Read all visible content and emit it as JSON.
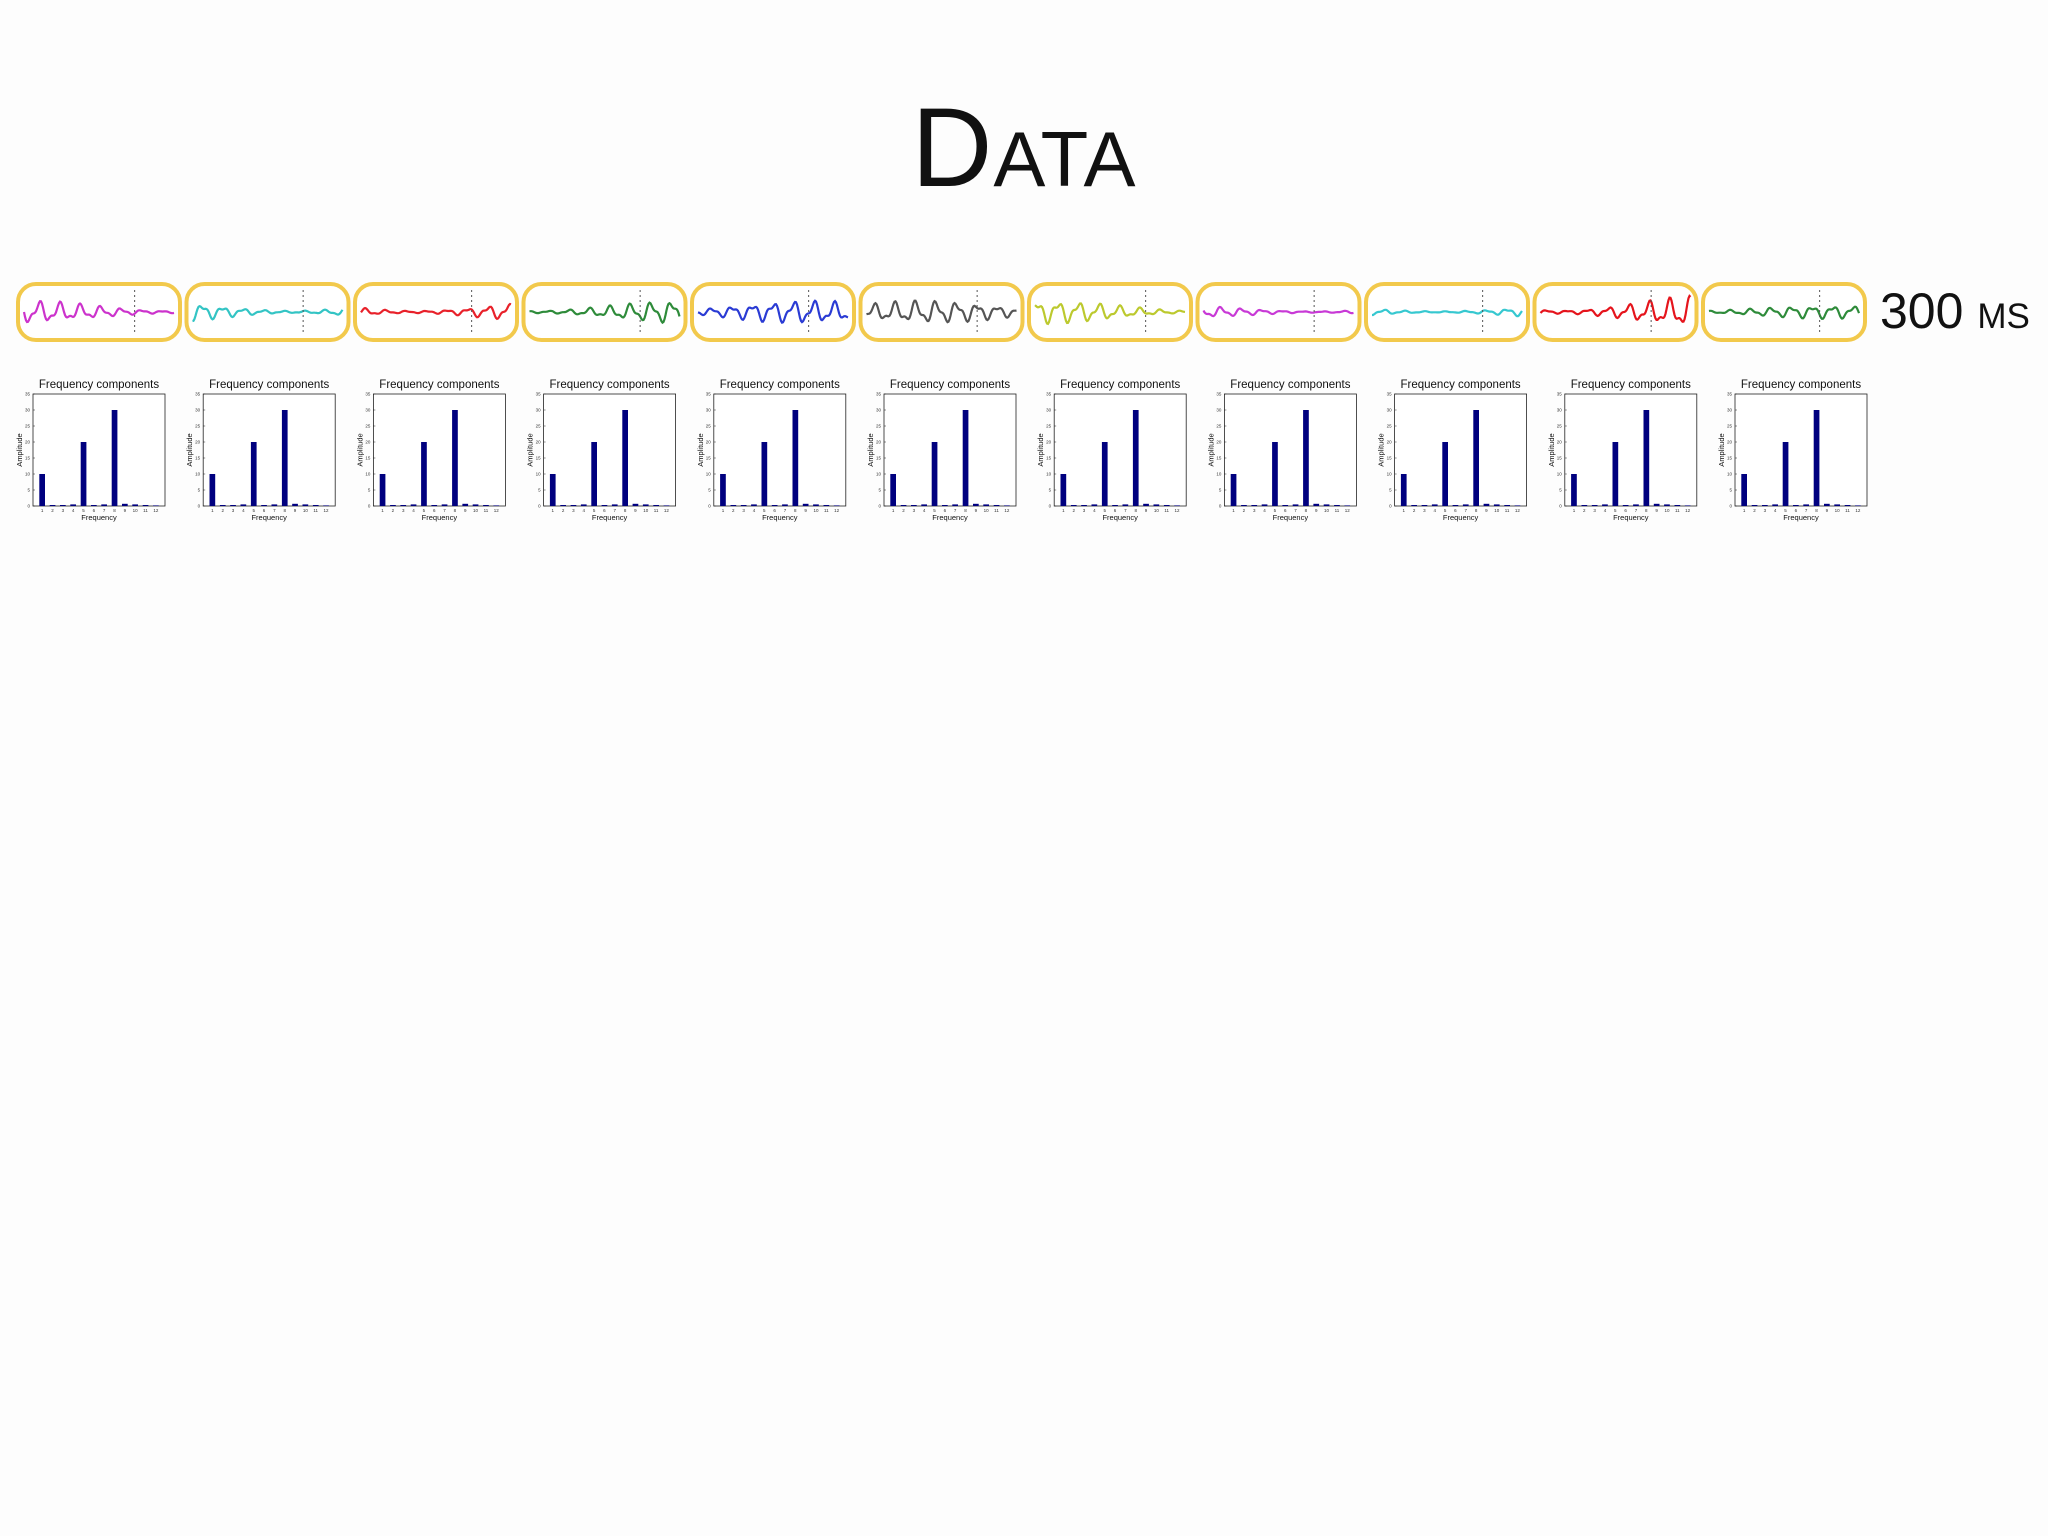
{
  "slide": {
    "title": "Data",
    "duration_label": "300 ms"
  },
  "colors": {
    "segment_border": "#f2c94c",
    "bar_fill": "#00007f",
    "waveforms": [
      "#cc33cc",
      "#33c4c4",
      "#e8212a",
      "#2e8b3a",
      "#2a3bd4",
      "#555555",
      "#bcc92e",
      "#c83ad6",
      "#36c8d0",
      "#e5141c",
      "#2e8b3a"
    ]
  },
  "signal_segments": [
    {
      "color": "#cc33cc"
    },
    {
      "color": "#33c4c4"
    },
    {
      "color": "#e8212a"
    },
    {
      "color": "#2e8b3a"
    },
    {
      "color": "#2a3bd4"
    },
    {
      "color": "#555555"
    },
    {
      "color": "#bcc92e"
    },
    {
      "color": "#c83ad6"
    },
    {
      "color": "#36c8d0"
    },
    {
      "color": "#e5141c"
    },
    {
      "color": "#2e8b3a"
    }
  ],
  "chart_data": [
    {
      "type": "bar",
      "title": "Frequency components",
      "xlabel": "Frequency",
      "ylabel": "Amplitude",
      "categories": [
        "1",
        "2",
        "3",
        "4",
        "5",
        "6",
        "7",
        "8",
        "9",
        "10",
        "11",
        "12"
      ],
      "values": [
        10,
        0.3,
        0.3,
        0.5,
        20,
        0.3,
        0.5,
        30,
        0.7,
        0.5,
        0.3,
        0.2
      ],
      "ylim": [
        0,
        35
      ],
      "yticks": [
        "0",
        "5",
        "10",
        "15",
        "20",
        "25",
        "30",
        "35"
      ]
    },
    {
      "type": "bar",
      "title": "Frequency components",
      "xlabel": "Frequency",
      "ylabel": "Amplitude",
      "categories": [
        "1",
        "2",
        "3",
        "4",
        "5",
        "6",
        "7",
        "8",
        "9",
        "10",
        "11",
        "12"
      ],
      "values": [
        10,
        0.3,
        0.3,
        0.5,
        20,
        0.3,
        0.5,
        30,
        0.7,
        0.5,
        0.3,
        0.2
      ],
      "ylim": [
        0,
        35
      ],
      "yticks": [
        "0",
        "5",
        "10",
        "15",
        "20",
        "25",
        "30",
        "35"
      ]
    },
    {
      "type": "bar",
      "title": "Frequency components",
      "xlabel": "Frequency",
      "ylabel": "Amplitude",
      "categories": [
        "1",
        "2",
        "3",
        "4",
        "5",
        "6",
        "7",
        "8",
        "9",
        "10",
        "11",
        "12"
      ],
      "values": [
        10,
        0.3,
        0.3,
        0.5,
        20,
        0.3,
        0.5,
        30,
        0.7,
        0.5,
        0.3,
        0.2
      ],
      "ylim": [
        0,
        35
      ],
      "yticks": [
        "0",
        "5",
        "10",
        "15",
        "20",
        "25",
        "30",
        "35"
      ]
    },
    {
      "type": "bar",
      "title": "Frequency components",
      "xlabel": "Frequency",
      "ylabel": "Amplitude",
      "categories": [
        "1",
        "2",
        "3",
        "4",
        "5",
        "6",
        "7",
        "8",
        "9",
        "10",
        "11",
        "12"
      ],
      "values": [
        10,
        0.3,
        0.3,
        0.5,
        20,
        0.3,
        0.5,
        30,
        0.7,
        0.5,
        0.3,
        0.2
      ],
      "ylim": [
        0,
        35
      ],
      "yticks": [
        "0",
        "5",
        "10",
        "15",
        "20",
        "25",
        "30",
        "35"
      ]
    },
    {
      "type": "bar",
      "title": "Frequency components",
      "xlabel": "Frequency",
      "ylabel": "Amplitude",
      "categories": [
        "1",
        "2",
        "3",
        "4",
        "5",
        "6",
        "7",
        "8",
        "9",
        "10",
        "11",
        "12"
      ],
      "values": [
        10,
        0.3,
        0.3,
        0.5,
        20,
        0.3,
        0.5,
        30,
        0.7,
        0.5,
        0.3,
        0.2
      ],
      "ylim": [
        0,
        35
      ],
      "yticks": [
        "0",
        "5",
        "10",
        "15",
        "20",
        "25",
        "30",
        "35"
      ]
    },
    {
      "type": "bar",
      "title": "Frequency components",
      "xlabel": "Frequency",
      "ylabel": "Amplitude",
      "categories": [
        "1",
        "2",
        "3",
        "4",
        "5",
        "6",
        "7",
        "8",
        "9",
        "10",
        "11",
        "12"
      ],
      "values": [
        10,
        0.3,
        0.3,
        0.5,
        20,
        0.3,
        0.5,
        30,
        0.7,
        0.5,
        0.3,
        0.2
      ],
      "ylim": [
        0,
        35
      ],
      "yticks": [
        "0",
        "5",
        "10",
        "15",
        "20",
        "25",
        "30",
        "35"
      ]
    },
    {
      "type": "bar",
      "title": "Frequency components",
      "xlabel": "Frequency",
      "ylabel": "Amplitude",
      "categories": [
        "1",
        "2",
        "3",
        "4",
        "5",
        "6",
        "7",
        "8",
        "9",
        "10",
        "11",
        "12"
      ],
      "values": [
        10,
        0.3,
        0.3,
        0.5,
        20,
        0.3,
        0.5,
        30,
        0.7,
        0.5,
        0.3,
        0.2
      ],
      "ylim": [
        0,
        35
      ],
      "yticks": [
        "0",
        "5",
        "10",
        "15",
        "20",
        "25",
        "30",
        "35"
      ]
    },
    {
      "type": "bar",
      "title": "Frequency components",
      "xlabel": "Frequency",
      "ylabel": "Amplitude",
      "categories": [
        "1",
        "2",
        "3",
        "4",
        "5",
        "6",
        "7",
        "8",
        "9",
        "10",
        "11",
        "12"
      ],
      "values": [
        10,
        0.3,
        0.3,
        0.5,
        20,
        0.3,
        0.5,
        30,
        0.7,
        0.5,
        0.3,
        0.2
      ],
      "ylim": [
        0,
        35
      ],
      "yticks": [
        "0",
        "5",
        "10",
        "15",
        "20",
        "25",
        "30",
        "35"
      ]
    },
    {
      "type": "bar",
      "title": "Frequency components",
      "xlabel": "Frequency",
      "ylabel": "Amplitude",
      "categories": [
        "1",
        "2",
        "3",
        "4",
        "5",
        "6",
        "7",
        "8",
        "9",
        "10",
        "11",
        "12"
      ],
      "values": [
        10,
        0.3,
        0.3,
        0.5,
        20,
        0.3,
        0.5,
        30,
        0.7,
        0.5,
        0.3,
        0.2
      ],
      "ylim": [
        0,
        35
      ],
      "yticks": [
        "0",
        "5",
        "10",
        "15",
        "20",
        "25",
        "30",
        "35"
      ]
    },
    {
      "type": "bar",
      "title": "Frequency components",
      "xlabel": "Frequency",
      "ylabel": "Amplitude",
      "categories": [
        "1",
        "2",
        "3",
        "4",
        "5",
        "6",
        "7",
        "8",
        "9",
        "10",
        "11",
        "12"
      ],
      "values": [
        10,
        0.3,
        0.3,
        0.5,
        20,
        0.3,
        0.5,
        30,
        0.7,
        0.5,
        0.3,
        0.2
      ],
      "ylim": [
        0,
        35
      ],
      "yticks": [
        "0",
        "5",
        "10",
        "15",
        "20",
        "25",
        "30",
        "35"
      ]
    },
    {
      "type": "bar",
      "title": "Frequency components",
      "xlabel": "Frequency",
      "ylabel": "Amplitude",
      "categories": [
        "1",
        "2",
        "3",
        "4",
        "5",
        "6",
        "7",
        "8",
        "9",
        "10",
        "11",
        "12"
      ],
      "values": [
        10,
        0.3,
        0.3,
        0.5,
        20,
        0.3,
        0.5,
        30,
        0.7,
        0.5,
        0.3,
        0.2
      ],
      "ylim": [
        0,
        35
      ],
      "yticks": [
        "0",
        "5",
        "10",
        "15",
        "20",
        "25",
        "30",
        "35"
      ]
    }
  ]
}
